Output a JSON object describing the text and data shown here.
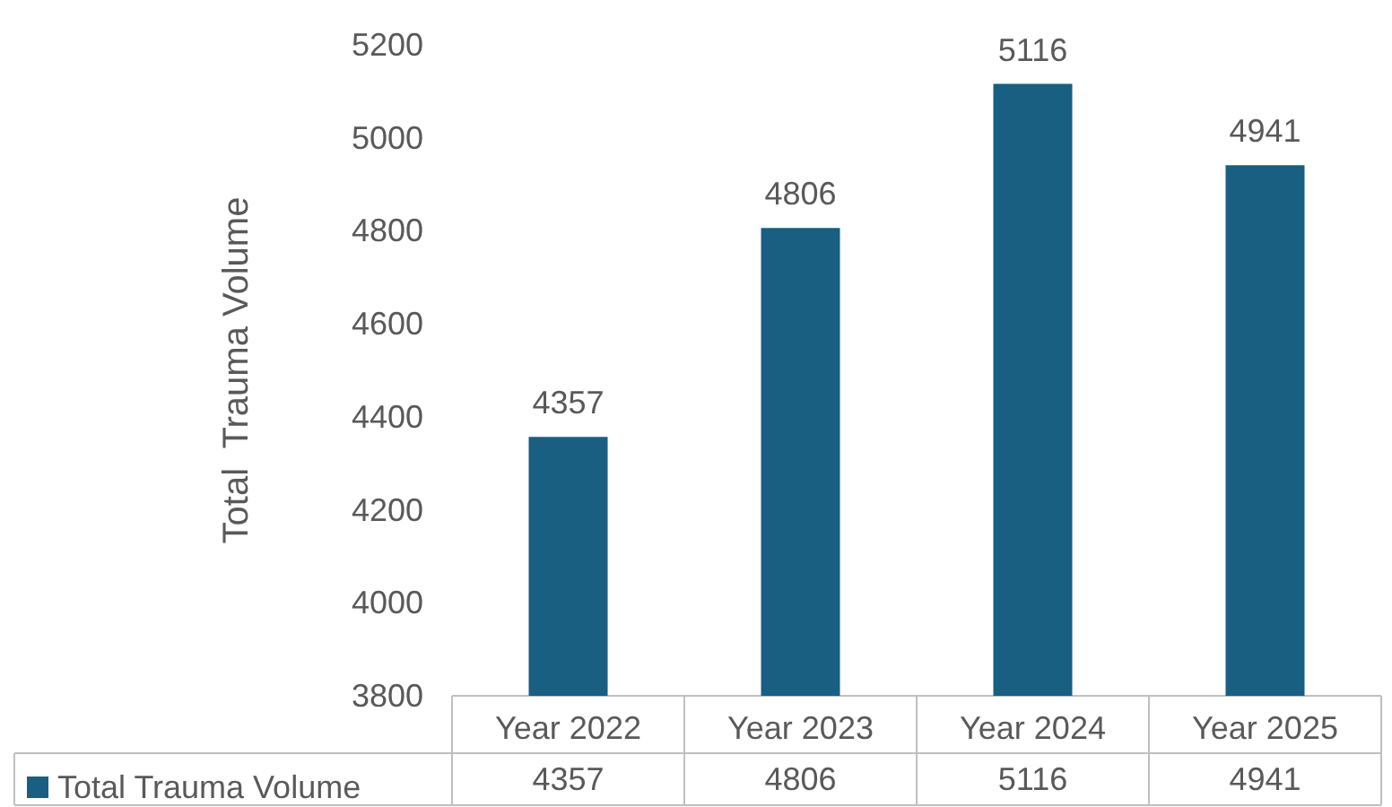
{
  "chart_data": {
    "type": "bar",
    "ylabel": "Total  Trauma Volume",
    "categories": [
      "Year 2022",
      "Year 2023",
      "Year 2024",
      "Year 2025"
    ],
    "series": [
      {
        "name": "Total Trauma Volume",
        "color": "#185f81",
        "values": [
          4357,
          4806,
          5116,
          4941
        ]
      }
    ],
    "annotations": [
      "4357",
      "4806",
      "5116",
      "4941"
    ],
    "ylim": [
      3800,
      5200
    ],
    "yticks": [
      3800,
      4000,
      4200,
      4400,
      4600,
      4800,
      5000,
      5200
    ],
    "data_labels": true,
    "legend": "bottom",
    "grid": false
  }
}
